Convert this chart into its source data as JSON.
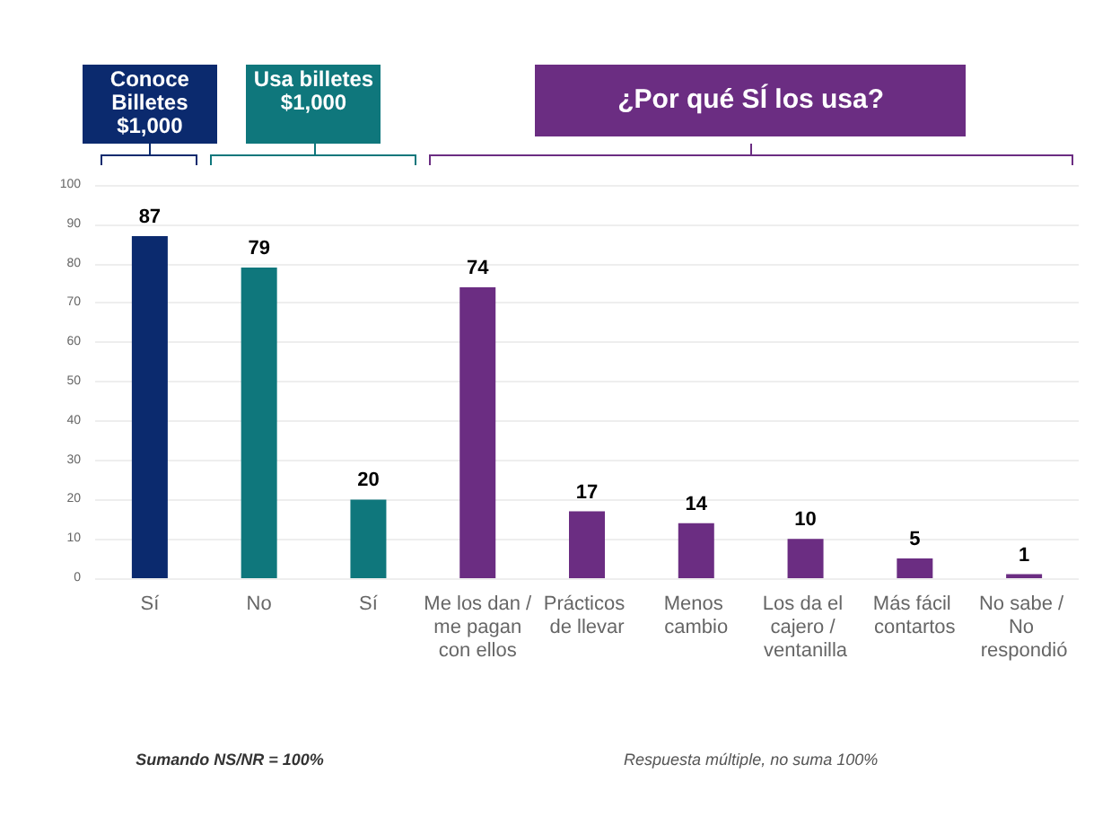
{
  "chart_data": {
    "type": "bar",
    "categories": [
      "Sí",
      "No",
      "Sí",
      "Me los dan / me pagan con ellos",
      "Prácticos de llevar",
      "Menos cambio",
      "Los da el cajero / ventanilla",
      "Más fácil contartos",
      "No sabe / No respondió"
    ],
    "values": [
      87,
      79,
      20,
      74,
      17,
      14,
      10,
      5,
      1
    ],
    "colors": [
      "#0b2a6e",
      "#0f777c",
      "#0f777c",
      "#6b2d82",
      "#6b2d82",
      "#6b2d82",
      "#6b2d82",
      "#6b2d82",
      "#6b2d82"
    ],
    "data_labels": true,
    "ylim": [
      0,
      100
    ],
    "yticks": [
      0,
      10,
      20,
      30,
      40,
      50,
      60,
      70,
      80,
      90,
      100
    ],
    "grid": "y",
    "annotations": [
      "Conoce Billetes $1,000",
      "Usa billetes $1,000",
      "¿Por qué SÍ los usa?",
      "Sumando NS/NR = 100%",
      "Respuesta múltiple, no suma 100%"
    ]
  }
}
